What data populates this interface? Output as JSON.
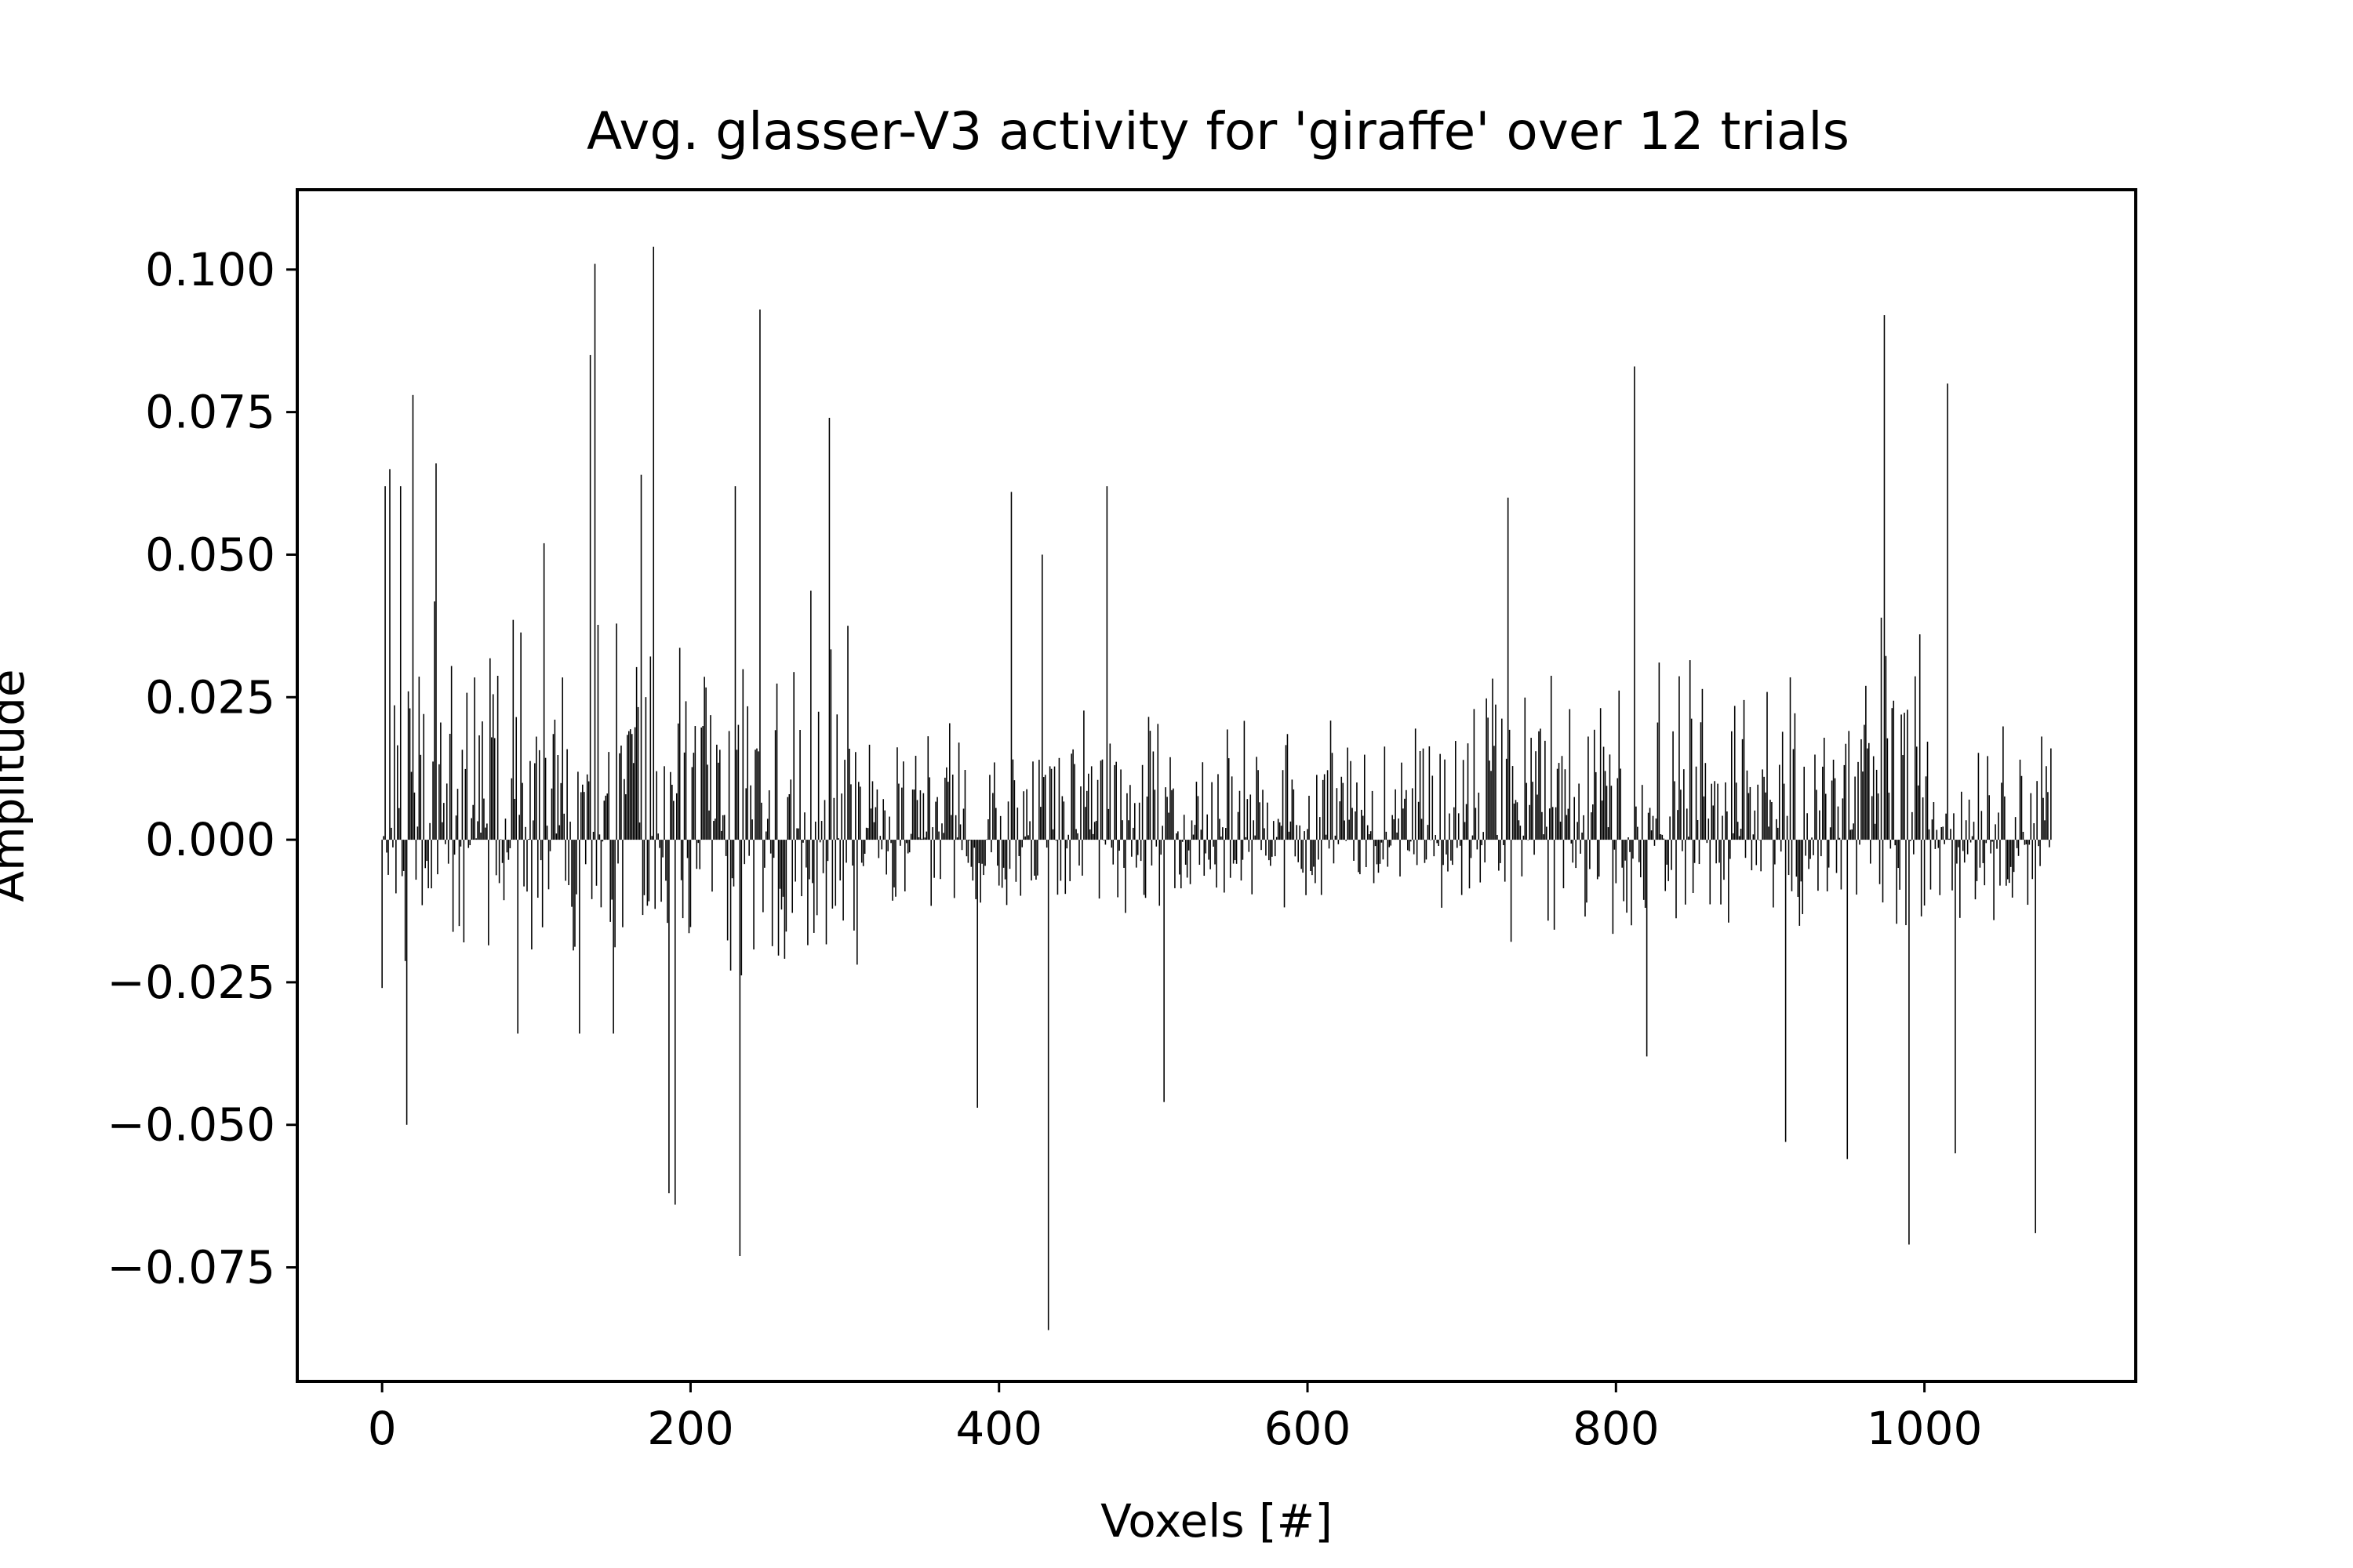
{
  "chart_data": {
    "type": "bar",
    "title": "Avg. glasser-V3 activity for 'giraffe' over 12 trials",
    "xlabel": "Voxels [#]",
    "ylabel": "Amplitude",
    "x_range": [
      -55,
      1137
    ],
    "y_range": [
      -0.095,
      0.114
    ],
    "n_voxels": 1083,
    "bar_color": "#000000",
    "grid": false,
    "x_ticks": [
      {
        "value": 0,
        "label": "0"
      },
      {
        "value": 200,
        "label": "200"
      },
      {
        "value": 400,
        "label": "400"
      },
      {
        "value": 600,
        "label": "600"
      },
      {
        "value": 800,
        "label": "800"
      },
      {
        "value": 1000,
        "label": "1000"
      }
    ],
    "y_ticks": [
      {
        "value": 0.1,
        "label": "0.100"
      },
      {
        "value": 0.075,
        "label": "0.075"
      },
      {
        "value": 0.05,
        "label": "0.050"
      },
      {
        "value": 0.025,
        "label": "0.025"
      },
      {
        "value": 0.0,
        "label": "0.000"
      },
      {
        "value": -0.025,
        "label": "−0.025"
      },
      {
        "value": -0.05,
        "label": "−0.050"
      },
      {
        "value": -0.075,
        "label": "−0.075"
      }
    ],
    "peaks": [
      {
        "x": 0,
        "y": -0.026
      },
      {
        "x": 2,
        "y": 0.062
      },
      {
        "x": 5,
        "y": 0.065
      },
      {
        "x": 12,
        "y": 0.062
      },
      {
        "x": 16,
        "y": -0.05
      },
      {
        "x": 20,
        "y": 0.078
      },
      {
        "x": 35,
        "y": 0.066
      },
      {
        "x": 53,
        "y": -0.018
      },
      {
        "x": 88,
        "y": -0.034
      },
      {
        "x": 105,
        "y": 0.052
      },
      {
        "x": 128,
        "y": -0.034
      },
      {
        "x": 135,
        "y": 0.085
      },
      {
        "x": 138,
        "y": 0.101
      },
      {
        "x": 150,
        "y": -0.034
      },
      {
        "x": 168,
        "y": 0.064
      },
      {
        "x": 176,
        "y": 0.104
      },
      {
        "x": 186,
        "y": -0.062
      },
      {
        "x": 190,
        "y": -0.064
      },
      {
        "x": 229,
        "y": 0.062
      },
      {
        "x": 232,
        "y": -0.073
      },
      {
        "x": 245,
        "y": 0.093
      },
      {
        "x": 290,
        "y": 0.074
      },
      {
        "x": 386,
        "y": -0.047
      },
      {
        "x": 408,
        "y": 0.061
      },
      {
        "x": 428,
        "y": 0.05
      },
      {
        "x": 432,
        "y": -0.086
      },
      {
        "x": 470,
        "y": 0.062
      },
      {
        "x": 507,
        "y": -0.046
      },
      {
        "x": 730,
        "y": 0.06
      },
      {
        "x": 812,
        "y": 0.083
      },
      {
        "x": 820,
        "y": -0.038
      },
      {
        "x": 910,
        "y": -0.053
      },
      {
        "x": 950,
        "y": -0.056
      },
      {
        "x": 974,
        "y": 0.092
      },
      {
        "x": 990,
        "y": -0.071
      },
      {
        "x": 1015,
        "y": 0.08
      },
      {
        "x": 1020,
        "y": -0.055
      },
      {
        "x": 1072,
        "y": -0.069
      }
    ]
  }
}
